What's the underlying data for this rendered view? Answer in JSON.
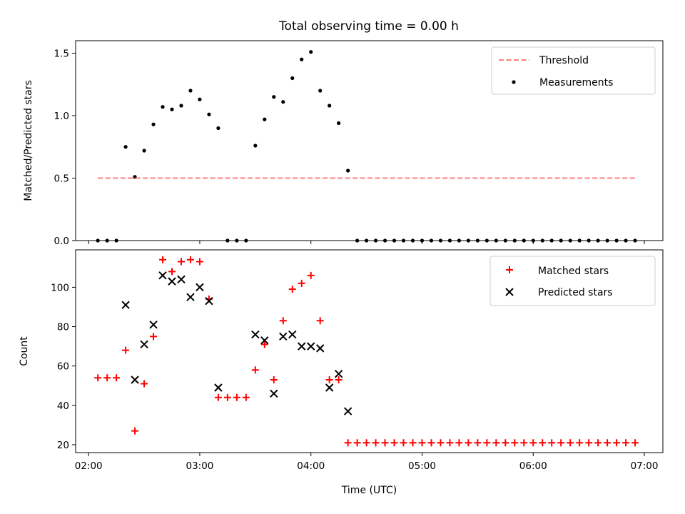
{
  "figure": {
    "title": "Total observing time = 0.00 h"
  },
  "chart_data": [
    {
      "type": "scatter",
      "title": "Total observing time = 0.00 h",
      "xlabel": "",
      "ylabel": "Matched/Predicted stars",
      "ylim": [
        0,
        1.6
      ],
      "yticks": [
        0,
        0.5,
        1.0,
        1.5
      ],
      "ytick_labels": [
        "0.0",
        "0.5",
        "1.0",
        "1.5"
      ],
      "xlim": [
        "01:53",
        "07:10"
      ],
      "legend_position": "top-right",
      "threshold": {
        "name": "Threshold",
        "value": 0.5,
        "x_start": "02:05",
        "x_end": "06:55",
        "color": "#ff7f7f",
        "style": "dashed"
      },
      "series": [
        {
          "name": "Measurements",
          "marker": "dot",
          "color": "#000000",
          "points": [
            [
              "02:05",
              0
            ],
            [
              "02:10",
              0
            ],
            [
              "02:15",
              0
            ],
            [
              "02:20",
              0.75
            ],
            [
              "02:25",
              0.51
            ],
            [
              "02:30",
              0.72
            ],
            [
              "02:35",
              0.93
            ],
            [
              "02:40",
              1.07
            ],
            [
              "02:45",
              1.05
            ],
            [
              "02:50",
              1.08
            ],
            [
              "02:55",
              1.2
            ],
            [
              "03:00",
              1.13
            ],
            [
              "03:05",
              1.01
            ],
            [
              "03:10",
              0.9
            ],
            [
              "03:15",
              0
            ],
            [
              "03:20",
              0
            ],
            [
              "03:25",
              0
            ],
            [
              "03:30",
              0.76
            ],
            [
              "03:35",
              0.97
            ],
            [
              "03:40",
              1.15
            ],
            [
              "03:45",
              1.11
            ],
            [
              "03:50",
              1.3
            ],
            [
              "03:55",
              1.45
            ],
            [
              "04:00",
              1.51
            ],
            [
              "04:05",
              1.2
            ],
            [
              "04:10",
              1.08
            ],
            [
              "04:15",
              0.94
            ],
            [
              "04:20",
              0.56
            ],
            [
              "04:25",
              0
            ],
            [
              "04:30",
              0
            ],
            [
              "04:35",
              0
            ],
            [
              "04:40",
              0
            ],
            [
              "04:45",
              0
            ],
            [
              "04:50",
              0
            ],
            [
              "04:55",
              0
            ],
            [
              "05:00",
              0
            ],
            [
              "05:05",
              0
            ],
            [
              "05:10",
              0
            ],
            [
              "05:15",
              0
            ],
            [
              "05:20",
              0
            ],
            [
              "05:25",
              0
            ],
            [
              "05:30",
              0
            ],
            [
              "05:35",
              0
            ],
            [
              "05:40",
              0
            ],
            [
              "05:45",
              0
            ],
            [
              "05:50",
              0
            ],
            [
              "05:55",
              0
            ],
            [
              "06:00",
              0
            ],
            [
              "06:05",
              0
            ],
            [
              "06:10",
              0
            ],
            [
              "06:15",
              0
            ],
            [
              "06:20",
              0
            ],
            [
              "06:25",
              0
            ],
            [
              "06:30",
              0
            ],
            [
              "06:35",
              0
            ],
            [
              "06:40",
              0
            ],
            [
              "06:45",
              0
            ],
            [
              "06:50",
              0
            ],
            [
              "06:55",
              0
            ]
          ]
        }
      ]
    },
    {
      "type": "scatter",
      "title": "",
      "xlabel": "Time (UTC)",
      "ylabel": "Count",
      "ylim": [
        16,
        119
      ],
      "yticks": [
        20,
        40,
        60,
        80,
        100
      ],
      "ytick_labels": [
        "20",
        "40",
        "60",
        "80",
        "100"
      ],
      "xlim": [
        "01:53",
        "07:10"
      ],
      "xticks": [
        "02:00",
        "03:00",
        "04:00",
        "05:00",
        "06:00",
        "07:00"
      ],
      "xtick_labels": [
        "02:00",
        "03:00",
        "04:00",
        "05:00",
        "06:00",
        "07:00"
      ],
      "legend_position": "top-right",
      "series": [
        {
          "name": "Matched stars",
          "marker": "plus",
          "color": "#ff0000",
          "points": [
            [
              "02:05",
              54
            ],
            [
              "02:10",
              54
            ],
            [
              "02:15",
              54
            ],
            [
              "02:20",
              68
            ],
            [
              "02:25",
              27
            ],
            [
              "02:30",
              51
            ],
            [
              "02:35",
              75
            ],
            [
              "02:40",
              114
            ],
            [
              "02:45",
              108
            ],
            [
              "02:50",
              113
            ],
            [
              "02:55",
              114
            ],
            [
              "03:00",
              113
            ],
            [
              "03:05",
              94
            ],
            [
              "03:10",
              44
            ],
            [
              "03:15",
              44
            ],
            [
              "03:20",
              44
            ],
            [
              "03:25",
              44
            ],
            [
              "03:30",
              58
            ],
            [
              "03:35",
              71
            ],
            [
              "03:40",
              53
            ],
            [
              "03:45",
              83
            ],
            [
              "03:50",
              99
            ],
            [
              "03:55",
              102
            ],
            [
              "04:00",
              106
            ],
            [
              "04:05",
              83
            ],
            [
              "04:10",
              53
            ],
            [
              "04:15",
              53
            ],
            [
              "04:20",
              21
            ],
            [
              "04:25",
              21
            ],
            [
              "04:30",
              21
            ],
            [
              "04:35",
              21
            ],
            [
              "04:40",
              21
            ],
            [
              "04:45",
              21
            ],
            [
              "04:50",
              21
            ],
            [
              "04:55",
              21
            ],
            [
              "05:00",
              21
            ],
            [
              "05:05",
              21
            ],
            [
              "05:10",
              21
            ],
            [
              "05:15",
              21
            ],
            [
              "05:20",
              21
            ],
            [
              "05:25",
              21
            ],
            [
              "05:30",
              21
            ],
            [
              "05:35",
              21
            ],
            [
              "05:40",
              21
            ],
            [
              "05:45",
              21
            ],
            [
              "05:50",
              21
            ],
            [
              "05:55",
              21
            ],
            [
              "06:00",
              21
            ],
            [
              "06:05",
              21
            ],
            [
              "06:10",
              21
            ],
            [
              "06:15",
              21
            ],
            [
              "06:20",
              21
            ],
            [
              "06:25",
              21
            ],
            [
              "06:30",
              21
            ],
            [
              "06:35",
              21
            ],
            [
              "06:40",
              21
            ],
            [
              "06:45",
              21
            ],
            [
              "06:50",
              21
            ],
            [
              "06:55",
              21
            ]
          ]
        },
        {
          "name": "Predicted stars",
          "marker": "x",
          "color": "#000000",
          "points": [
            [
              "02:20",
              91
            ],
            [
              "02:25",
              53
            ],
            [
              "02:30",
              71
            ],
            [
              "02:35",
              81
            ],
            [
              "02:40",
              106
            ],
            [
              "02:45",
              103
            ],
            [
              "02:50",
              104
            ],
            [
              "02:55",
              95
            ],
            [
              "03:00",
              100
            ],
            [
              "03:05",
              93
            ],
            [
              "03:10",
              49
            ],
            [
              "03:30",
              76
            ],
            [
              "03:35",
              73
            ],
            [
              "03:40",
              46
            ],
            [
              "03:45",
              75
            ],
            [
              "03:50",
              76
            ],
            [
              "03:55",
              70
            ],
            [
              "04:00",
              70
            ],
            [
              "04:05",
              69
            ],
            [
              "04:10",
              49
            ],
            [
              "04:15",
              56
            ],
            [
              "04:20",
              37
            ]
          ]
        }
      ]
    }
  ]
}
